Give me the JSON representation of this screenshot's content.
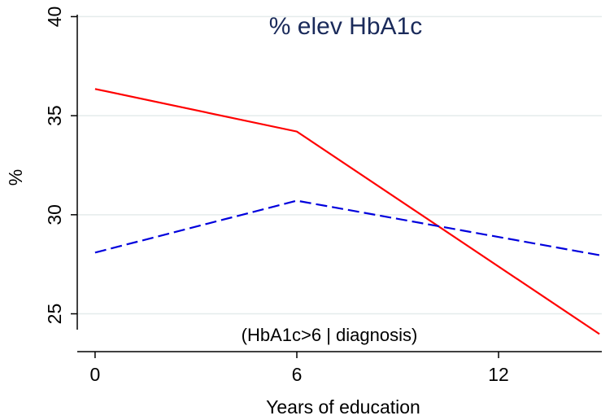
{
  "chart_data": {
    "type": "line",
    "title": "% elev HbA1c",
    "annotation": "(HbA1c>6 | diagnosis)",
    "x_label": "Years of education",
    "y_label": "%",
    "series": [
      {
        "color": "#ff0000",
        "style": "solid",
        "x": [
          0,
          6,
          15
        ],
        "values": [
          36.35,
          34.2,
          23.98
        ]
      },
      {
        "color": "#0000dd",
        "style": "dashed",
        "x": [
          0,
          6,
          15
        ],
        "values": [
          28.09,
          30.71,
          27.96
        ]
      }
    ],
    "xlim": [
      -0.53,
      15.07
    ],
    "xticks": [
      0,
      6,
      12
    ],
    "ylim": [
      24.2,
      40.1
    ],
    "yticks": [
      25,
      30,
      35,
      40
    ],
    "grid": true
  }
}
